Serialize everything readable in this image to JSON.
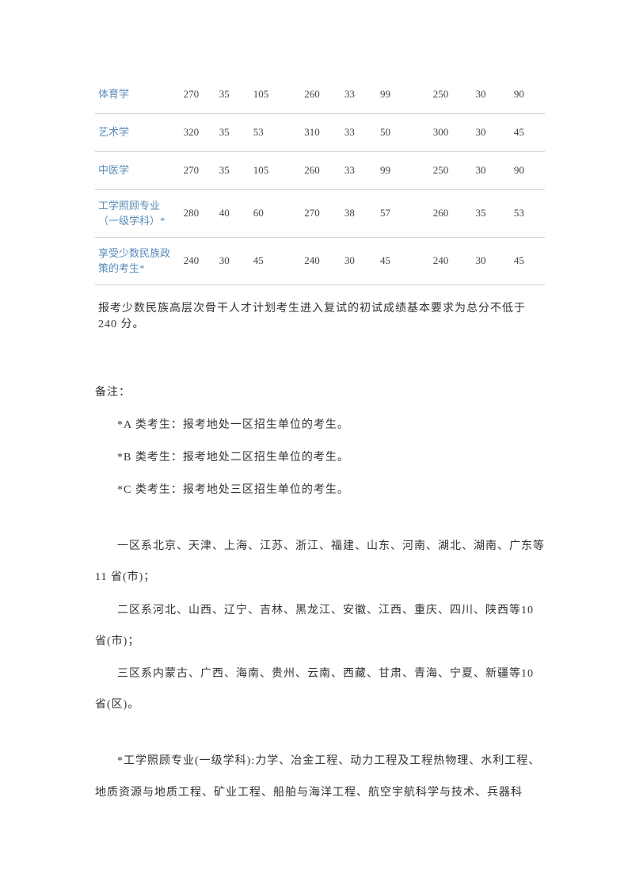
{
  "table": {
    "rows": [
      {
        "label": "体育学",
        "c1": "270",
        "c2": "35",
        "c3": "105",
        "c4": "260",
        "c5": "33",
        "c6": "99",
        "c7": "250",
        "c8": "30",
        "c9": "90",
        "tall": false
      },
      {
        "label": "艺术学",
        "c1": "320",
        "c2": "35",
        "c3": "53",
        "c4": "310",
        "c5": "33",
        "c6": "50",
        "c7": "300",
        "c8": "30",
        "c9": "45",
        "tall": false
      },
      {
        "label": "中医学",
        "c1": "270",
        "c2": "35",
        "c3": "105",
        "c4": "260",
        "c5": "33",
        "c6": "99",
        "c7": "250",
        "c8": "30",
        "c9": "90",
        "tall": false
      },
      {
        "label": "工学照顾专业（一级学科）*",
        "c1": "280",
        "c2": "40",
        "c3": "60",
        "c4": "270",
        "c5": "38",
        "c6": "57",
        "c7": "260",
        "c8": "35",
        "c9": "53",
        "tall": true
      },
      {
        "label": "享受少数民族政策的考生*",
        "c1": "240",
        "c2": "30",
        "c3": "45",
        "c4": "240",
        "c5": "30",
        "c6": "45",
        "c7": "240",
        "c8": "30",
        "c9": "45",
        "tall": true
      }
    ],
    "footnote": "报考少数民族高层次骨干人才计划考生进入复试的初试成绩基本要求为总分不低于 240 分。"
  },
  "notes": {
    "heading": "备注：",
    "a": "*A 类考生：报考地处一区招生单位的考生。",
    "b": "*B 类考生：报考地处二区招生单位的考生。",
    "c": "*C 类考生：报考地处三区招生单位的考生。",
    "region1": "一区系北京、天津、上海、江苏、浙江、福建、山东、河南、湖北、湖南、广东等 11 省(市)；",
    "region2": "二区系河北、山西、辽宁、吉林、黑龙江、安徽、江西、重庆、四川、陕西等10 省(市)；",
    "region3": "三区系内蒙古、广西、海南、贵州、云南、西藏、甘肃、青海、宁夏、新疆等10 省(区)。",
    "eng": "*工学照顾专业(一级学科):力学、冶金工程、动力工程及工程热物理、水利工程、地质资源与地质工程、矿业工程、船舶与海洋工程、航空宇航科学与技术、兵器科"
  }
}
